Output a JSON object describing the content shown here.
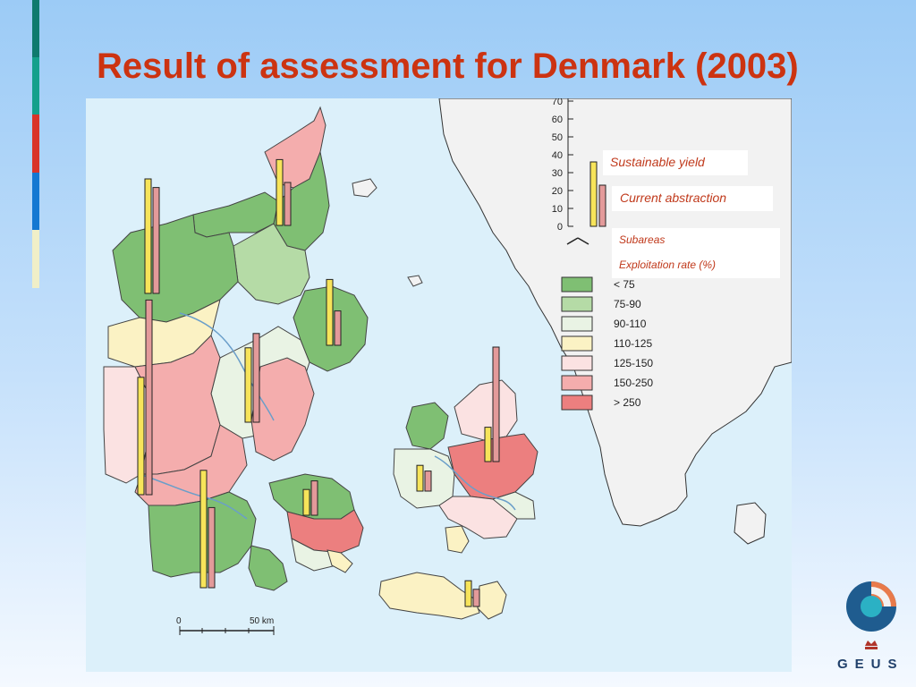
{
  "slide": {
    "title": "Result of assessment for Denmark (2003)",
    "accent_colors": [
      "#0e7a6e",
      "#14a08c",
      "#d9342a",
      "#1478d2",
      "#f0efc8"
    ]
  },
  "legend": {
    "sustainable_yield_label": "Sustainable yield",
    "current_abstraction_label": "Current abstraction",
    "subareas_label": "Subareas",
    "exploitation_rate_label": "Exploitation rate (%)",
    "sustainable_yield_color": "#f7e45a",
    "current_abstraction_color": "#e39a9a",
    "axis_ticks": [
      "70",
      "60",
      "50",
      "40",
      "30",
      "20",
      "10",
      "0"
    ],
    "exploitation_classes": [
      {
        "label": "< 75",
        "color": "#7fbf73"
      },
      {
        "label": "75-90",
        "color": "#b5dba6"
      },
      {
        "label": "90-110",
        "color": "#e9f3e4"
      },
      {
        "label": "110-125",
        "color": "#fbf2c4"
      },
      {
        "label": "125-150",
        "color": "#fbe2e2"
      },
      {
        "label": "150-250",
        "color": "#f4adad"
      },
      {
        "label": "> 250",
        "color": "#ec7f7f"
      }
    ]
  },
  "map": {
    "sea_color": "#dcf0fa",
    "land_color": "#f2f2f2",
    "scale_start": "0",
    "scale_end": "50 km",
    "bars": [
      {
        "name": "north-jutland",
        "sustainable": 23,
        "abstraction": 15
      },
      {
        "name": "west-jutland-north",
        "sustainable": 40,
        "abstraction": 37
      },
      {
        "name": "djursland",
        "sustainable": 23,
        "abstraction": 12
      },
      {
        "name": "central-jutland",
        "sustainable": 26,
        "abstraction": 31
      },
      {
        "name": "west-jutland-south",
        "sustainable": 41,
        "abstraction": 68
      },
      {
        "name": "south-jutland",
        "sustainable": 41,
        "abstraction": 28
      },
      {
        "name": "funen",
        "sustainable": 9,
        "abstraction": 12
      },
      {
        "name": "west-zealand",
        "sustainable": 9,
        "abstraction": 7
      },
      {
        "name": "north-zealand",
        "sustainable": 12,
        "abstraction": 40
      },
      {
        "name": "lolland-falster",
        "sustainable": 9,
        "abstraction": 6
      }
    ]
  },
  "logo": {
    "text": "GEUS"
  }
}
